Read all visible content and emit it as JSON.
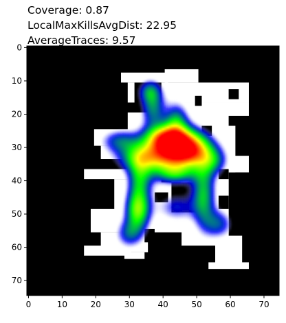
{
  "title_lines": [
    "Coverage: 0.87",
    "LocalMaxKillsAvgDist: 22.95",
    "AverageTraces: 9.57"
  ],
  "chart_data": {
    "type": "heatmap",
    "xlim": [
      -0.5,
      74.5
    ],
    "ylim": [
      74.5,
      -0.5
    ],
    "x_ticks": [
      0,
      10,
      20,
      30,
      40,
      50,
      60,
      70
    ],
    "y_ticks": [
      0,
      10,
      20,
      30,
      40,
      50,
      60,
      70
    ],
    "grid": false,
    "background_color": "#000000",
    "walkable_color": "#ffffff",
    "colormap": [
      "#ffffff",
      "#c8c8ff",
      "#0000ff",
      "#00ff00",
      "#ffff00",
      "#ff0000"
    ],
    "walkable_regions": [
      {
        "x": 28,
        "y": 8,
        "w": 14,
        "h": 3
      },
      {
        "x": 41,
        "y": 7,
        "w": 10,
        "h": 4
      },
      {
        "x": 30,
        "y": 11,
        "w": 2,
        "h": 6
      },
      {
        "x": 40,
        "y": 11,
        "w": 26,
        "h": 6
      },
      {
        "x": 36,
        "y": 17,
        "w": 30,
        "h": 4
      },
      {
        "x": 20,
        "y": 25,
        "w": 20,
        "h": 5
      },
      {
        "x": 22,
        "y": 30,
        "w": 12,
        "h": 4
      },
      {
        "x": 30,
        "y": 20,
        "w": 30,
        "h": 36
      },
      {
        "x": 50,
        "y": 24,
        "w": 12,
        "h": 14
      },
      {
        "x": 60,
        "y": 33,
        "w": 6,
        "h": 5
      },
      {
        "x": 17,
        "y": 37,
        "w": 16,
        "h": 3
      },
      {
        "x": 26,
        "y": 40,
        "w": 10,
        "h": 12
      },
      {
        "x": 19,
        "y": 49,
        "w": 12,
        "h": 7
      },
      {
        "x": 22,
        "y": 56,
        "w": 14,
        "h": 6
      },
      {
        "x": 17,
        "y": 60,
        "w": 14,
        "h": 3
      },
      {
        "x": 29,
        "y": 62,
        "w": 6,
        "h": 2
      },
      {
        "x": 54,
        "y": 38,
        "w": 6,
        "h": 20
      },
      {
        "x": 46,
        "y": 52,
        "w": 14,
        "h": 8
      },
      {
        "x": 56,
        "y": 57,
        "w": 8,
        "h": 9
      },
      {
        "x": 54,
        "y": 65,
        "w": 12,
        "h": 2
      }
    ],
    "obstacles": [
      {
        "x": 50,
        "y": 15,
        "w": 2,
        "h": 3
      },
      {
        "x": 60,
        "y": 13,
        "w": 3,
        "h": 3
      },
      {
        "x": 52,
        "y": 24,
        "w": 3,
        "h": 3
      },
      {
        "x": 37,
        "y": 29,
        "w": 3,
        "h": 3
      },
      {
        "x": 47,
        "y": 31,
        "w": 3,
        "h": 3
      },
      {
        "x": 44,
        "y": 36,
        "w": 10,
        "h": 3
      },
      {
        "x": 40,
        "y": 38,
        "w": 3,
        "h": 3
      },
      {
        "x": 43,
        "y": 41,
        "w": 9,
        "h": 9
      },
      {
        "x": 51,
        "y": 39,
        "w": 3,
        "h": 12
      },
      {
        "x": 38,
        "y": 44,
        "w": 4,
        "h": 3
      },
      {
        "x": 30,
        "y": 51,
        "w": 4,
        "h": 2
      },
      {
        "x": 35,
        "y": 55,
        "w": 3,
        "h": 4
      },
      {
        "x": 57,
        "y": 45,
        "w": 3,
        "h": 4
      },
      {
        "x": 57,
        "y": 37,
        "w": 3,
        "h": 3
      }
    ],
    "heat_blobs": [
      {
        "x": 47,
        "y": 30.5,
        "sx": 4.8,
        "sy": 3.8,
        "v": 1.0
      },
      {
        "x": 40,
        "y": 31,
        "sx": 5,
        "sy": 5,
        "v": 0.55
      },
      {
        "x": 41,
        "y": 27,
        "sx": 4,
        "sy": 2.5,
        "v": 0.45
      },
      {
        "x": 33,
        "y": 33,
        "sx": 5,
        "sy": 3,
        "v": 0.4
      },
      {
        "x": 27,
        "y": 28,
        "sx": 4,
        "sy": 2.5,
        "v": 0.3
      },
      {
        "x": 37,
        "y": 18,
        "sx": 2.5,
        "sy": 4,
        "v": 0.35
      },
      {
        "x": 36,
        "y": 13,
        "sx": 2.5,
        "sy": 2.5,
        "v": 0.3
      },
      {
        "x": 44,
        "y": 22,
        "sx": 2.5,
        "sy": 4,
        "v": 0.35
      },
      {
        "x": 32.5,
        "y": 49,
        "sx": 2.6,
        "sy": 4,
        "v": 0.55
      },
      {
        "x": 33,
        "y": 40,
        "sx": 2.5,
        "sy": 5,
        "v": 0.4
      },
      {
        "x": 30,
        "y": 56,
        "sx": 3,
        "sy": 3,
        "v": 0.3
      },
      {
        "x": 52,
        "y": 44,
        "sx": 2.5,
        "sy": 7,
        "v": 0.45
      },
      {
        "x": 55,
        "y": 34,
        "sx": 3,
        "sy": 3,
        "v": 0.3
      },
      {
        "x": 56.5,
        "y": 53,
        "sx": 3,
        "sy": 3,
        "v": 0.3
      },
      {
        "x": 44,
        "y": 38,
        "sx": 4,
        "sy": 2,
        "v": 0.3
      },
      {
        "x": 44,
        "y": 48,
        "sx": 4,
        "sy": 3,
        "v": 0.25
      }
    ]
  }
}
